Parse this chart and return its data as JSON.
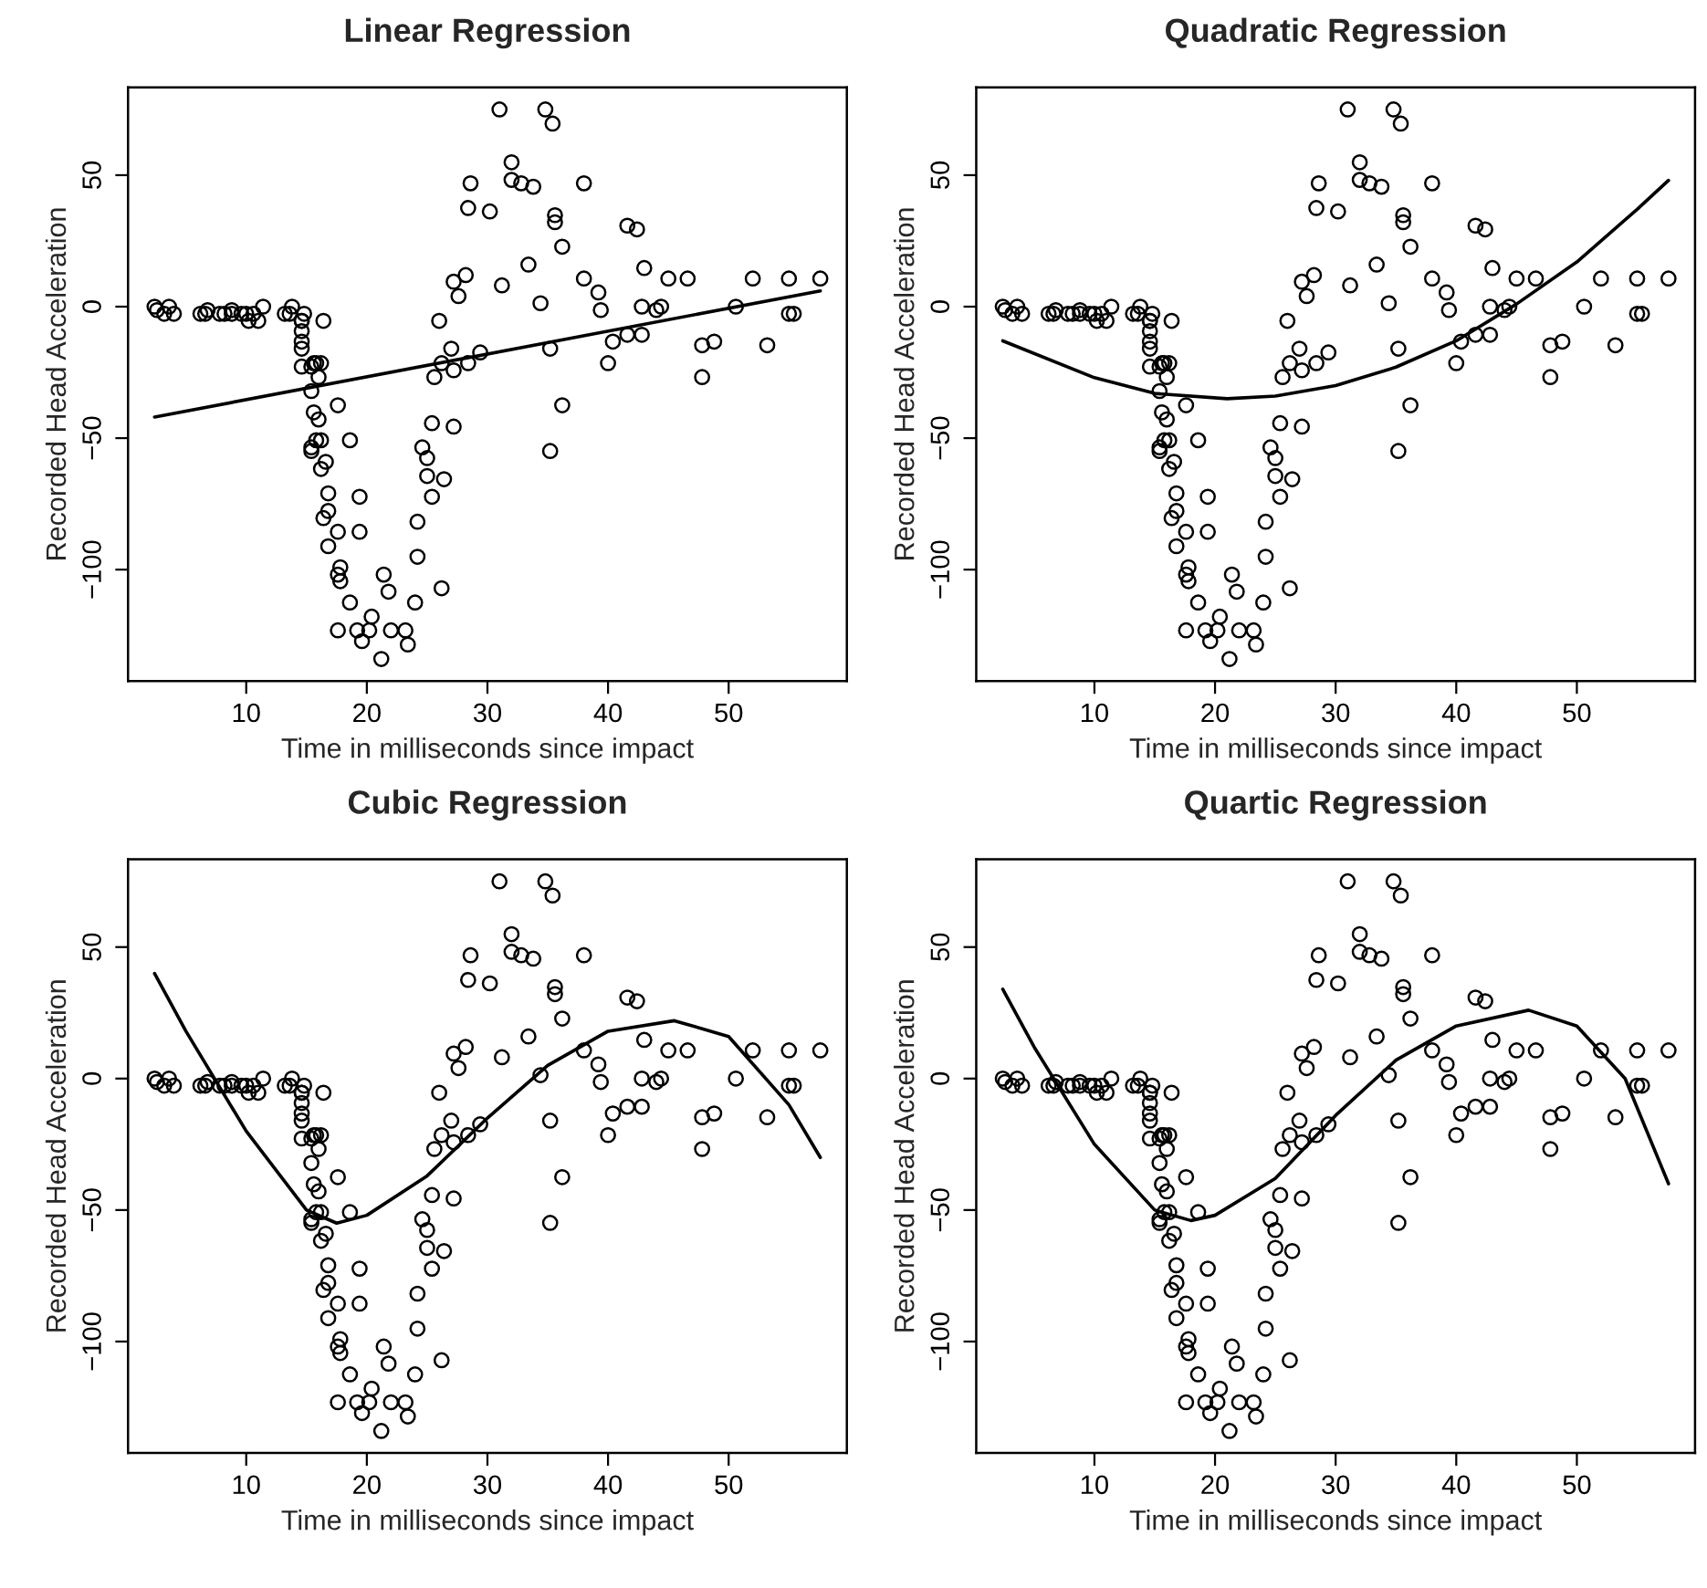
{
  "chart_data": [
    {
      "type": "scatter",
      "title": "Linear Regression",
      "xlabel": "Time in milliseconds since impact",
      "ylabel": "Recorded Head Acceleration",
      "xlim": [
        0.2,
        59.8
      ],
      "ylim": [
        -142.4,
        83.4
      ],
      "xticks": [
        10,
        20,
        30,
        40,
        50
      ],
      "yticks": [
        -100,
        -50,
        0,
        50
      ],
      "grid": false,
      "series": [
        {
          "marker": "circle",
          "color": "#000000",
          "x": [
            2.4,
            2.6,
            3.2,
            3.6,
            4.0,
            6.2,
            6.6,
            6.8,
            7.8,
            8.2,
            8.8,
            8.8,
            9.6,
            10.0,
            10.2,
            10.6,
            11.0,
            11.4,
            13.2,
            13.6,
            13.8,
            14.6,
            14.6,
            14.6,
            14.6,
            14.6,
            14.6,
            14.8,
            15.4,
            15.4,
            15.4,
            15.4,
            15.6,
            15.6,
            15.8,
            15.8,
            16.0,
            16.0,
            16.2,
            16.2,
            16.2,
            16.4,
            16.4,
            16.6,
            16.8,
            16.8,
            16.8,
            17.6,
            17.6,
            17.6,
            17.6,
            17.8,
            17.8,
            18.6,
            18.6,
            19.2,
            19.4,
            19.4,
            19.6,
            20.2,
            20.4,
            21.2,
            21.4,
            21.8,
            22.0,
            23.2,
            23.4,
            24.0,
            24.2,
            24.2,
            24.6,
            25.0,
            25.0,
            25.4,
            25.4,
            25.6,
            26.0,
            26.2,
            26.2,
            26.4,
            27.0,
            27.2,
            27.2,
            27.2,
            27.6,
            28.2,
            28.4,
            28.4,
            28.6,
            29.4,
            30.2,
            31.0,
            31.2,
            32.0,
            32.0,
            32.8,
            33.4,
            33.8,
            34.4,
            34.8,
            35.2,
            35.2,
            35.4,
            35.6,
            35.6,
            36.2,
            36.2,
            38.0,
            38.0,
            39.2,
            39.4,
            40.0,
            40.4,
            41.6,
            41.6,
            42.4,
            42.8,
            42.8,
            43.0,
            44.0,
            44.4,
            45.0,
            46.6,
            47.8,
            47.8,
            48.8,
            50.6,
            52.0,
            53.2,
            55.0,
            55.0,
            55.4,
            57.6
          ],
          "values": [
            0.0,
            -1.3,
            -2.7,
            0.0,
            -2.7,
            -2.7,
            -2.7,
            -1.3,
            -2.7,
            -2.7,
            -1.3,
            -2.7,
            -2.7,
            -2.7,
            -5.4,
            -2.7,
            -5.4,
            0.0,
            -2.7,
            -2.7,
            0.0,
            -13.3,
            -5.4,
            -5.4,
            -9.3,
            -16.0,
            -22.8,
            -2.7,
            -22.8,
            -32.1,
            -53.5,
            -54.9,
            -40.2,
            -21.5,
            -21.5,
            -50.8,
            -42.9,
            -26.8,
            -21.5,
            -50.8,
            -61.7,
            -5.4,
            -80.4,
            -59.0,
            -71.0,
            -91.1,
            -77.7,
            -37.5,
            -85.6,
            -123.1,
            -101.9,
            -99.1,
            -104.4,
            -112.5,
            -50.8,
            -123.1,
            -85.6,
            -72.3,
            -127.2,
            -123.1,
            -117.9,
            -134.0,
            -101.9,
            -108.4,
            -123.1,
            -123.1,
            -128.5,
            -112.5,
            -95.1,
            -81.8,
            -53.5,
            -64.4,
            -57.6,
            -72.3,
            -44.3,
            -26.8,
            -5.4,
            -107.1,
            -21.5,
            -65.6,
            -16.0,
            -45.6,
            -24.2,
            9.5,
            4.0,
            12.0,
            -21.5,
            37.5,
            46.9,
            -17.4,
            36.2,
            75.0,
            8.1,
            54.9,
            48.2,
            46.9,
            16.0,
            45.6,
            1.3,
            75.0,
            -16.0,
            -54.9,
            69.6,
            34.8,
            32.1,
            -37.5,
            22.8,
            46.9,
            10.7,
            5.4,
            -1.3,
            -21.5,
            -13.3,
            30.8,
            -10.7,
            29.4,
            0.0,
            -10.7,
            14.7,
            -1.3,
            0.0,
            10.7,
            10.7,
            -26.8,
            -14.7,
            -13.3,
            0.0,
            10.7,
            -14.7,
            -2.7,
            10.7,
            -2.7,
            10.7
          ]
        },
        {
          "type": "line",
          "marker": "none",
          "color": "#000000",
          "x": [
            2.4,
            57.6
          ],
          "values": [
            -42,
            6
          ]
        }
      ]
    },
    {
      "type": "scatter",
      "title": "Quadratic Regression",
      "xlabel": "Time in milliseconds since impact",
      "ylabel": "Recorded Head Acceleration",
      "xlim": [
        0.2,
        59.8
      ],
      "ylim": [
        -142.4,
        83.4
      ],
      "xticks": [
        10,
        20,
        30,
        40,
        50
      ],
      "yticks": [
        -100,
        -50,
        0,
        50
      ],
      "grid": false,
      "series": [
        {
          "marker": "circle",
          "color": "#000000",
          "x": [
            2.4,
            2.6,
            3.2,
            3.6,
            4.0,
            6.2,
            6.6,
            6.8,
            7.8,
            8.2,
            8.8,
            8.8,
            9.6,
            10.0,
            10.2,
            10.6,
            11.0,
            11.4,
            13.2,
            13.6,
            13.8,
            14.6,
            14.6,
            14.6,
            14.6,
            14.6,
            14.6,
            14.8,
            15.4,
            15.4,
            15.4,
            15.4,
            15.6,
            15.6,
            15.8,
            15.8,
            16.0,
            16.0,
            16.2,
            16.2,
            16.2,
            16.4,
            16.4,
            16.6,
            16.8,
            16.8,
            16.8,
            17.6,
            17.6,
            17.6,
            17.6,
            17.8,
            17.8,
            18.6,
            18.6,
            19.2,
            19.4,
            19.4,
            19.6,
            20.2,
            20.4,
            21.2,
            21.4,
            21.8,
            22.0,
            23.2,
            23.4,
            24.0,
            24.2,
            24.2,
            24.6,
            25.0,
            25.0,
            25.4,
            25.4,
            25.6,
            26.0,
            26.2,
            26.2,
            26.4,
            27.0,
            27.2,
            27.2,
            27.2,
            27.6,
            28.2,
            28.4,
            28.4,
            28.6,
            29.4,
            30.2,
            31.0,
            31.2,
            32.0,
            32.0,
            32.8,
            33.4,
            33.8,
            34.4,
            34.8,
            35.2,
            35.2,
            35.4,
            35.6,
            35.6,
            36.2,
            36.2,
            38.0,
            38.0,
            39.2,
            39.4,
            40.0,
            40.4,
            41.6,
            41.6,
            42.4,
            42.8,
            42.8,
            43.0,
            44.0,
            44.4,
            45.0,
            46.6,
            47.8,
            47.8,
            48.8,
            50.6,
            52.0,
            53.2,
            55.0,
            55.0,
            55.4,
            57.6
          ],
          "values": [
            0.0,
            -1.3,
            -2.7,
            0.0,
            -2.7,
            -2.7,
            -2.7,
            -1.3,
            -2.7,
            -2.7,
            -1.3,
            -2.7,
            -2.7,
            -2.7,
            -5.4,
            -2.7,
            -5.4,
            0.0,
            -2.7,
            -2.7,
            0.0,
            -13.3,
            -5.4,
            -5.4,
            -9.3,
            -16.0,
            -22.8,
            -2.7,
            -22.8,
            -32.1,
            -53.5,
            -54.9,
            -40.2,
            -21.5,
            -21.5,
            -50.8,
            -42.9,
            -26.8,
            -21.5,
            -50.8,
            -61.7,
            -5.4,
            -80.4,
            -59.0,
            -71.0,
            -91.1,
            -77.7,
            -37.5,
            -85.6,
            -123.1,
            -101.9,
            -99.1,
            -104.4,
            -112.5,
            -50.8,
            -123.1,
            -85.6,
            -72.3,
            -127.2,
            -123.1,
            -117.9,
            -134.0,
            -101.9,
            -108.4,
            -123.1,
            -123.1,
            -128.5,
            -112.5,
            -95.1,
            -81.8,
            -53.5,
            -64.4,
            -57.6,
            -72.3,
            -44.3,
            -26.8,
            -5.4,
            -107.1,
            -21.5,
            -65.6,
            -16.0,
            -45.6,
            -24.2,
            9.5,
            4.0,
            12.0,
            -21.5,
            37.5,
            46.9,
            -17.4,
            36.2,
            75.0,
            8.1,
            54.9,
            48.2,
            46.9,
            16.0,
            45.6,
            1.3,
            75.0,
            -16.0,
            -54.9,
            69.6,
            34.8,
            32.1,
            -37.5,
            22.8,
            46.9,
            10.7,
            5.4,
            -1.3,
            -21.5,
            -13.3,
            30.8,
            -10.7,
            29.4,
            0.0,
            -10.7,
            14.7,
            -1.3,
            0.0,
            10.7,
            10.7,
            -26.8,
            -14.7,
            -13.3,
            0.0,
            10.7,
            -14.7,
            -2.7,
            10.7,
            -2.7,
            10.7
          ]
        },
        {
          "type": "line",
          "marker": "none",
          "color": "#000000",
          "x": [
            2.4,
            10,
            15,
            21,
            25,
            30,
            35,
            40,
            45,
            50,
            55,
            57.6
          ],
          "values": [
            -13,
            -27,
            -33,
            -35,
            -34,
            -30,
            -23,
            -13,
            1,
            17,
            37,
            48
          ]
        }
      ]
    },
    {
      "type": "scatter",
      "title": "Cubic Regression",
      "xlabel": "Time in milliseconds since impact",
      "ylabel": "Recorded Head Acceleration",
      "xlim": [
        0.2,
        59.8
      ],
      "ylim": [
        -142.4,
        83.4
      ],
      "xticks": [
        10,
        20,
        30,
        40,
        50
      ],
      "yticks": [
        -100,
        -50,
        0,
        50
      ],
      "grid": false,
      "series": [
        {
          "marker": "circle",
          "color": "#000000",
          "x": [
            2.4,
            2.6,
            3.2,
            3.6,
            4.0,
            6.2,
            6.6,
            6.8,
            7.8,
            8.2,
            8.8,
            8.8,
            9.6,
            10.0,
            10.2,
            10.6,
            11.0,
            11.4,
            13.2,
            13.6,
            13.8,
            14.6,
            14.6,
            14.6,
            14.6,
            14.6,
            14.6,
            14.8,
            15.4,
            15.4,
            15.4,
            15.4,
            15.6,
            15.6,
            15.8,
            15.8,
            16.0,
            16.0,
            16.2,
            16.2,
            16.2,
            16.4,
            16.4,
            16.6,
            16.8,
            16.8,
            16.8,
            17.6,
            17.6,
            17.6,
            17.6,
            17.8,
            17.8,
            18.6,
            18.6,
            19.2,
            19.4,
            19.4,
            19.6,
            20.2,
            20.4,
            21.2,
            21.4,
            21.8,
            22.0,
            23.2,
            23.4,
            24.0,
            24.2,
            24.2,
            24.6,
            25.0,
            25.0,
            25.4,
            25.4,
            25.6,
            26.0,
            26.2,
            26.2,
            26.4,
            27.0,
            27.2,
            27.2,
            27.2,
            27.6,
            28.2,
            28.4,
            28.4,
            28.6,
            29.4,
            30.2,
            31.0,
            31.2,
            32.0,
            32.0,
            32.8,
            33.4,
            33.8,
            34.4,
            34.8,
            35.2,
            35.2,
            35.4,
            35.6,
            35.6,
            36.2,
            36.2,
            38.0,
            38.0,
            39.2,
            39.4,
            40.0,
            40.4,
            41.6,
            41.6,
            42.4,
            42.8,
            42.8,
            43.0,
            44.0,
            44.4,
            45.0,
            46.6,
            47.8,
            47.8,
            48.8,
            50.6,
            52.0,
            53.2,
            55.0,
            55.0,
            55.4,
            57.6
          ],
          "values": [
            0.0,
            -1.3,
            -2.7,
            0.0,
            -2.7,
            -2.7,
            -2.7,
            -1.3,
            -2.7,
            -2.7,
            -1.3,
            -2.7,
            -2.7,
            -2.7,
            -5.4,
            -2.7,
            -5.4,
            0.0,
            -2.7,
            -2.7,
            0.0,
            -13.3,
            -5.4,
            -5.4,
            -9.3,
            -16.0,
            -22.8,
            -2.7,
            -22.8,
            -32.1,
            -53.5,
            -54.9,
            -40.2,
            -21.5,
            -21.5,
            -50.8,
            -42.9,
            -26.8,
            -21.5,
            -50.8,
            -61.7,
            -5.4,
            -80.4,
            -59.0,
            -71.0,
            -91.1,
            -77.7,
            -37.5,
            -85.6,
            -123.1,
            -101.9,
            -99.1,
            -104.4,
            -112.5,
            -50.8,
            -123.1,
            -85.6,
            -72.3,
            -127.2,
            -123.1,
            -117.9,
            -134.0,
            -101.9,
            -108.4,
            -123.1,
            -123.1,
            -128.5,
            -112.5,
            -95.1,
            -81.8,
            -53.5,
            -64.4,
            -57.6,
            -72.3,
            -44.3,
            -26.8,
            -5.4,
            -107.1,
            -21.5,
            -65.6,
            -16.0,
            -45.6,
            -24.2,
            9.5,
            4.0,
            12.0,
            -21.5,
            37.5,
            46.9,
            -17.4,
            36.2,
            75.0,
            8.1,
            54.9,
            48.2,
            46.9,
            16.0,
            45.6,
            1.3,
            75.0,
            -16.0,
            -54.9,
            69.6,
            34.8,
            32.1,
            -37.5,
            22.8,
            46.9,
            10.7,
            5.4,
            -1.3,
            -21.5,
            -13.3,
            30.8,
            -10.7,
            29.4,
            0.0,
            -10.7,
            14.7,
            -1.3,
            0.0,
            10.7,
            10.7,
            -26.8,
            -14.7,
            -13.3,
            0.0,
            10.7,
            -14.7,
            -2.7,
            10.7,
            -2.7,
            10.7
          ]
        },
        {
          "type": "line",
          "marker": "none",
          "color": "#000000",
          "x": [
            2.4,
            5,
            10,
            15,
            17.5,
            20,
            25,
            30,
            35,
            40,
            45.5,
            50,
            55,
            57.6
          ],
          "values": [
            40,
            18,
            -20,
            -50,
            -55,
            -52,
            -37,
            -15,
            5,
            18,
            22,
            16,
            -10,
            -30
          ]
        }
      ]
    },
    {
      "type": "scatter",
      "title": "Quartic Regression",
      "xlabel": "Time in milliseconds since impact",
      "ylabel": "Recorded Head Acceleration",
      "xlim": [
        0.2,
        59.8
      ],
      "ylim": [
        -142.4,
        83.4
      ],
      "xticks": [
        10,
        20,
        30,
        40,
        50
      ],
      "yticks": [
        -100,
        -50,
        0,
        50
      ],
      "grid": false,
      "series": [
        {
          "marker": "circle",
          "color": "#000000",
          "x": [
            2.4,
            2.6,
            3.2,
            3.6,
            4.0,
            6.2,
            6.6,
            6.8,
            7.8,
            8.2,
            8.8,
            8.8,
            9.6,
            10.0,
            10.2,
            10.6,
            11.0,
            11.4,
            13.2,
            13.6,
            13.8,
            14.6,
            14.6,
            14.6,
            14.6,
            14.6,
            14.6,
            14.8,
            15.4,
            15.4,
            15.4,
            15.4,
            15.6,
            15.6,
            15.8,
            15.8,
            16.0,
            16.0,
            16.2,
            16.2,
            16.2,
            16.4,
            16.4,
            16.6,
            16.8,
            16.8,
            16.8,
            17.6,
            17.6,
            17.6,
            17.6,
            17.8,
            17.8,
            18.6,
            18.6,
            19.2,
            19.4,
            19.4,
            19.6,
            20.2,
            20.4,
            21.2,
            21.4,
            21.8,
            22.0,
            23.2,
            23.4,
            24.0,
            24.2,
            24.2,
            24.6,
            25.0,
            25.0,
            25.4,
            25.4,
            25.6,
            26.0,
            26.2,
            26.2,
            26.4,
            27.0,
            27.2,
            27.2,
            27.2,
            27.6,
            28.2,
            28.4,
            28.4,
            28.6,
            29.4,
            30.2,
            31.0,
            31.2,
            32.0,
            32.0,
            32.8,
            33.4,
            33.8,
            34.4,
            34.8,
            35.2,
            35.2,
            35.4,
            35.6,
            35.6,
            36.2,
            36.2,
            38.0,
            38.0,
            39.2,
            39.4,
            40.0,
            40.4,
            41.6,
            41.6,
            42.4,
            42.8,
            42.8,
            43.0,
            44.0,
            44.4,
            45.0,
            46.6,
            47.8,
            47.8,
            48.8,
            50.6,
            52.0,
            53.2,
            55.0,
            55.0,
            55.4,
            57.6
          ],
          "values": [
            0.0,
            -1.3,
            -2.7,
            0.0,
            -2.7,
            -2.7,
            -2.7,
            -1.3,
            -2.7,
            -2.7,
            -1.3,
            -2.7,
            -2.7,
            -2.7,
            -5.4,
            -2.7,
            -5.4,
            0.0,
            -2.7,
            -2.7,
            0.0,
            -13.3,
            -5.4,
            -5.4,
            -9.3,
            -16.0,
            -22.8,
            -2.7,
            -22.8,
            -32.1,
            -53.5,
            -54.9,
            -40.2,
            -21.5,
            -21.5,
            -50.8,
            -42.9,
            -26.8,
            -21.5,
            -50.8,
            -61.7,
            -5.4,
            -80.4,
            -59.0,
            -71.0,
            -91.1,
            -77.7,
            -37.5,
            -85.6,
            -123.1,
            -101.9,
            -99.1,
            -104.4,
            -112.5,
            -50.8,
            -123.1,
            -85.6,
            -72.3,
            -127.2,
            -123.1,
            -117.9,
            -134.0,
            -101.9,
            -108.4,
            -123.1,
            -123.1,
            -128.5,
            -112.5,
            -95.1,
            -81.8,
            -53.5,
            -64.4,
            -57.6,
            -72.3,
            -44.3,
            -26.8,
            -5.4,
            -107.1,
            -21.5,
            -65.6,
            -16.0,
            -45.6,
            -24.2,
            9.5,
            4.0,
            12.0,
            -21.5,
            37.5,
            46.9,
            -17.4,
            36.2,
            75.0,
            8.1,
            54.9,
            48.2,
            46.9,
            16.0,
            45.6,
            1.3,
            75.0,
            -16.0,
            -54.9,
            69.6,
            34.8,
            32.1,
            -37.5,
            22.8,
            46.9,
            10.7,
            5.4,
            -1.3,
            -21.5,
            -13.3,
            30.8,
            -10.7,
            29.4,
            0.0,
            -10.7,
            14.7,
            -1.3,
            0.0,
            10.7,
            10.7,
            -26.8,
            -14.7,
            -13.3,
            0.0,
            10.7,
            -14.7,
            -2.7,
            10.7,
            -2.7,
            10.7
          ]
        },
        {
          "type": "line",
          "marker": "none",
          "color": "#000000",
          "x": [
            2.4,
            5,
            10,
            15,
            18,
            20,
            25,
            30,
            35,
            40,
            46,
            50,
            54,
            57.6
          ],
          "values": [
            34,
            12,
            -25,
            -50,
            -54,
            -52,
            -38,
            -14,
            7,
            20,
            26,
            20,
            0,
            -40
          ]
        }
      ]
    }
  ]
}
